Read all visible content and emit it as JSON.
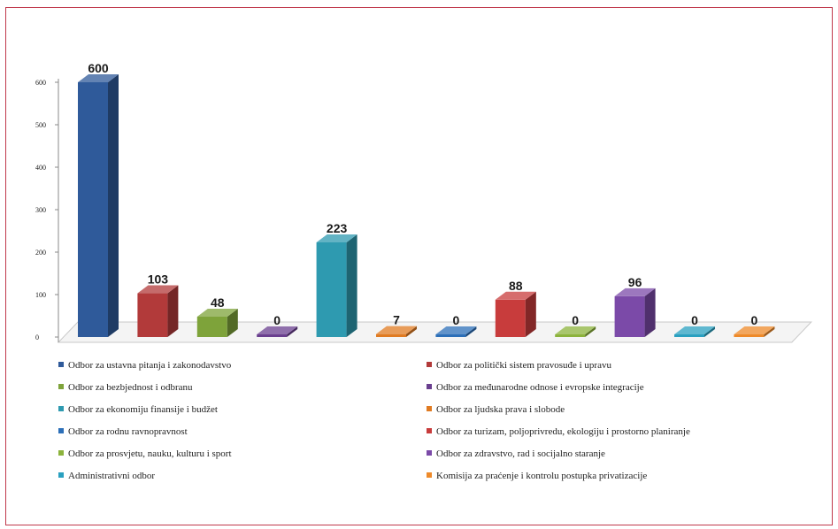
{
  "chart_data": {
    "type": "bar",
    "title": "",
    "xlabel": "",
    "ylabel": "",
    "ylim": [
      0,
      600
    ],
    "yticks": [
      "0",
      "100",
      "200",
      "300",
      "400",
      "500",
      "600"
    ],
    "grid": false,
    "legend_position": "bottom",
    "series": [
      {
        "name": "Odbor za ustavna pitanja i zakonodavstvo",
        "value": 600,
        "color": "#2f5a9a"
      },
      {
        "name": "Odbor za politički sistem pravosuđe i upravu",
        "value": 103,
        "color": "#b23a3a"
      },
      {
        "name": "Odbor za bezbjednost i odbranu",
        "value": 48,
        "color": "#7ea33a"
      },
      {
        "name": "Odbor za međunarodne odnose i evropske integracije",
        "value": 0,
        "color": "#6a3f8f"
      },
      {
        "name": "Odbor za ekonomiju finansije i budžet",
        "value": 223,
        "color": "#2e9ab0"
      },
      {
        "name": "Odbor za ljudska prava i slobode",
        "value": 7,
        "color": "#e07b22"
      },
      {
        "name": "Odbor za rodnu ravnopravnost",
        "value": 0,
        "color": "#2c6fb8"
      },
      {
        "name": "Odbor za turizam, poljoprivredu, ekologiju i prostorno planiranje",
        "value": 88,
        "color": "#c83c3c"
      },
      {
        "name": "Odbor za prosvjetu, nauku, kulturu i sport",
        "value": 0,
        "color": "#8cb33c"
      },
      {
        "name": "Odbor za zdravstvo, rad i socijalno staranje",
        "value": 96,
        "color": "#7b4aa8"
      },
      {
        "name": "Administrativni odbor",
        "value": 0,
        "color": "#2aa0c0"
      },
      {
        "name": "Komisija za praćenje i kontrolu postupka privatizacije",
        "value": 0,
        "color": "#ee8a2a"
      }
    ]
  }
}
